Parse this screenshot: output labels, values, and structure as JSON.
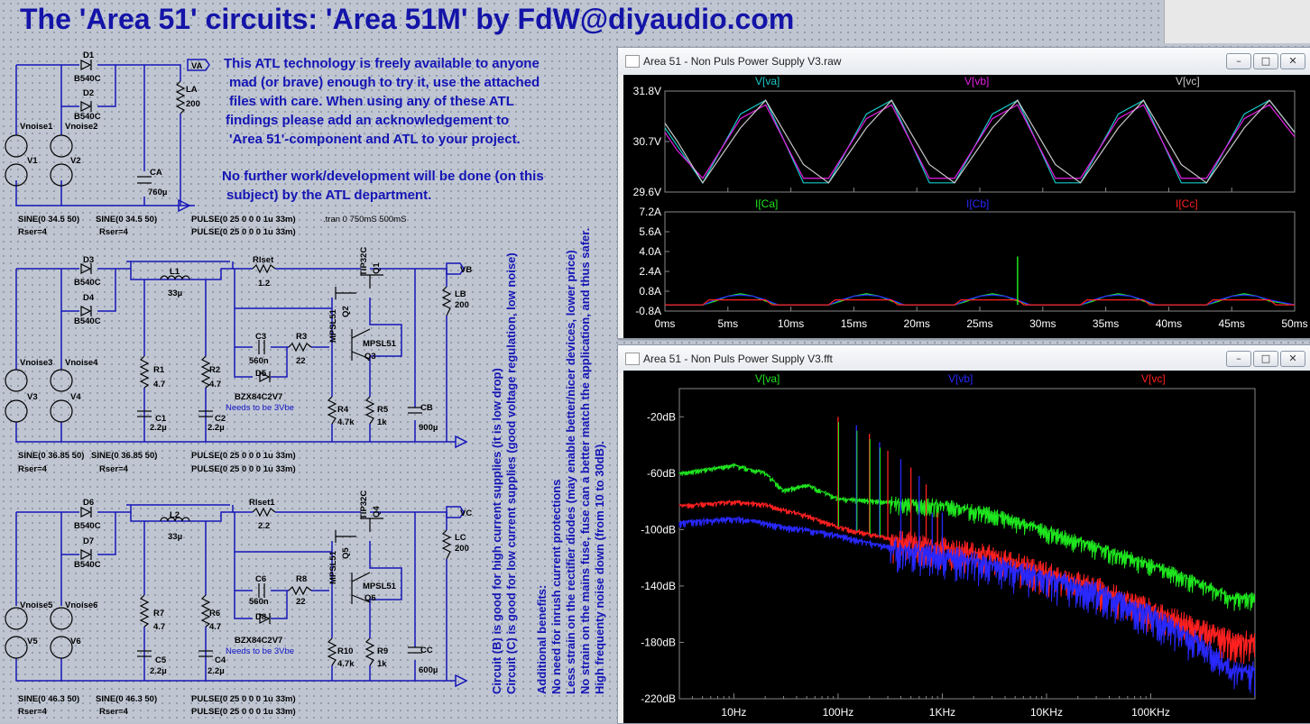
{
  "title": "The 'Area 51' circuits: 'Area 51M' by FdW@diyaudio.com",
  "notes": {
    "license_1": "This ATL technology is freely available to anyone",
    "license_2": "mad (or brave) enough to try it, use the attached",
    "license_3": "files with care. When using any of these ATL",
    "license_4": "findings please add an acknowledgement to",
    "license_5": "'Area 51'-component and ATL to your project.",
    "no_work_1": "No further work/development will be done (on this",
    "no_work_2": "subject) by the ATL department."
  },
  "vertical_notes": {
    "circuit_b": "Circuit (B) is good for high current supplies (it is low drop)",
    "circuit_c": "Circuit (C) is good for low current supplies (good voltage regulation, low noise)",
    "benefits_title": "Additional benefits:",
    "benefit_1": "No need for inrush current protections",
    "benefit_2": "Less strain on the rectifier diodes (may enable better/nicer devices, lower price)",
    "benefit_3": "No strain on the mains fuse, fuse can a better match the application, and thus safer.",
    "benefit_4": "High frequenty noise down (from 10 to 30dB)."
  },
  "schematic": {
    "a": {
      "d1": "D1",
      "d1v": "B540C",
      "d2": "D2",
      "d2v": "B540C",
      "vn1": "Vnoise1",
      "vn2": "Vnoise2",
      "v1": "V1",
      "v2": "V2",
      "la": "LA",
      "la_v": "200",
      "ca": "CA",
      "ca_v": "760µ",
      "net": "VA",
      "src1": "SINE(0 34.5 50)",
      "src2": "SINE(0 34.5 50)",
      "rser1": "Rser=4",
      "rser2": "Rser=4",
      "pulse1": "PULSE(0 25 0 0 0 1u 33m)",
      "pulse2": "PULSE(0 25 0 0 0 1u 33m)",
      "tran": ".tran 0 750mS 500mS"
    },
    "b": {
      "d3": "D3",
      "d3v": "B540C",
      "d4": "D4",
      "d4v": "B540C",
      "vn3": "Vnoise3",
      "vn4": "Vnoise4",
      "v3": "V3",
      "v4": "V4",
      "l1": "L1",
      "l1v": "33µ",
      "rset": "Rlset",
      "rset_v": "1.2",
      "q1": "Q1",
      "q1v": "TIP32C",
      "q2": "Q2",
      "q2v": "MPSL51",
      "q3": "Q3",
      "q3v": "MPSL51",
      "c3": "C3",
      "c3v": "560n",
      "r3": "R3",
      "r3v": "22",
      "d5": "D5",
      "d5v": "BZX84C2V7",
      "need": "Needs to be 3Vbe",
      "r1": "R1",
      "r1v": "4.7",
      "r2": "R2",
      "r2v": "4.7",
      "c1": "C1",
      "c1v": "2.2µ",
      "c2": "C2",
      "c2v": "2.2µ",
      "r4": "R4",
      "r4v": "4.7k",
      "r5": "R5",
      "r5v": "1k",
      "cb": "CB",
      "cbv": "900µ",
      "lb": "LB",
      "lbv": "200",
      "net": "VB",
      "src1": "SINE(0 36.85 50)",
      "src2": "SINE(0 36.85 50)",
      "rser1": "Rser=4",
      "rser2": "Rser=4",
      "pulse1": "PULSE(0 25 0 0 0 1u 33m)",
      "pulse2": "PULSE(0 25 0 0 0 1u 33m)"
    },
    "c": {
      "d6": "D6",
      "d6v": "B540C",
      "d7": "D7",
      "d7v": "B540C",
      "vn5": "Vnoise5",
      "vn6": "Vnoise6",
      "v5": "V5",
      "v6": "V6",
      "l2": "L2",
      "l2v": "33µ",
      "rset": "Rlset1",
      "rset_v": "2.2",
      "q4": "Q4",
      "q4v": "TIP32C",
      "q5": "Q5",
      "q5v": "MPSL51",
      "q6": "Q6",
      "q6v": "MPSL51",
      "c6": "C6",
      "c6v": "560n",
      "r8": "R8",
      "r8v": "22",
      "d8": "D8",
      "d8v": "BZX84C2V7",
      "need": "Needs to be 3Vbe",
      "r7": "R7",
      "r7v": "4.7",
      "r6": "R6",
      "r6v": "4.7",
      "c5": "C5",
      "c5v": "2.2µ",
      "c4": "C4",
      "c4v": "2.2µ",
      "r10": "R10",
      "r10v": "4.7k",
      "r9": "R9",
      "r9v": "1k",
      "cc": "CC",
      "ccv": "600µ",
      "lc": "LC",
      "lcv": "200",
      "net": "VC",
      "src1": "SINE(0 46.3 50)",
      "src2": "SINE(0 46.3 50)",
      "rser1": "Rser=4",
      "rser2": "Rser=4",
      "pulse1": "PULSE(0 25 0 0 0 1u 33m)",
      "pulse2": "PULSE(0 25 0 0 0 1u 33m)"
    }
  },
  "raw_window": {
    "title": "Area 51 - Non Puls Power Supply V3.raw",
    "btn_min": "–",
    "btn_max": "□",
    "btn_close": "✕",
    "traces_top": [
      "V[va]",
      "V[vb]",
      "V[vc]"
    ],
    "traces_bottom": [
      "I[Ca]",
      "I[Cb]",
      "I[Cc]"
    ],
    "colors": {
      "va": "#19c8c8",
      "vb": "#e61ee6",
      "vc": "#c8c8c8",
      "ia": "#1ee61e",
      "ib": "#2828ff",
      "ic": "#ff2020"
    }
  },
  "fft_window": {
    "title": "Area 51 - Non Puls Power Supply V3.fft",
    "btn_min": "–",
    "btn_max": "□",
    "btn_close": "✕",
    "traces": [
      "V[va]",
      "V[vb]",
      "V[vc]"
    ],
    "colors": {
      "va": "#1ee61e",
      "vb": "#2828ff",
      "vc": "#ff2020"
    }
  },
  "chart_data": [
    {
      "type": "line",
      "title": "",
      "xlabel": "",
      "ylabel": "",
      "x_ticks": [
        "0ms",
        "5ms",
        "10ms",
        "15ms",
        "20ms",
        "25ms",
        "30ms",
        "35ms",
        "40ms",
        "45ms",
        "50ms"
      ],
      "y_ticks": [
        "31.8V",
        "30.7V",
        "29.6V"
      ],
      "xlim": [
        0,
        50
      ],
      "ylim": [
        29.6,
        31.8
      ],
      "x_unit": "ms",
      "series": [
        {
          "name": "V[va]",
          "x": [
            0,
            1,
            3,
            6,
            8,
            11,
            13,
            16,
            18,
            21,
            23,
            26,
            28,
            31,
            33,
            36,
            38,
            41,
            43,
            46,
            48,
            50
          ],
          "y": [
            31.0,
            30.6,
            29.8,
            31.3,
            31.6,
            29.8,
            29.8,
            31.3,
            31.6,
            29.8,
            29.8,
            31.3,
            31.6,
            29.8,
            29.8,
            31.3,
            31.6,
            29.8,
            29.8,
            31.3,
            31.6,
            30.9
          ]
        },
        {
          "name": "V[vb]",
          "x": [
            0,
            1,
            3,
            6,
            8,
            11,
            13,
            16,
            18,
            21,
            23,
            26,
            28,
            31,
            33,
            36,
            38,
            41,
            43,
            46,
            48,
            50
          ],
          "y": [
            30.9,
            30.5,
            29.9,
            31.2,
            31.5,
            29.9,
            29.9,
            31.2,
            31.5,
            29.9,
            29.9,
            31.2,
            31.5,
            29.9,
            29.9,
            31.2,
            31.5,
            29.9,
            29.9,
            31.2,
            31.5,
            30.8
          ]
        },
        {
          "name": "V[vc]",
          "x": [
            0,
            1,
            3,
            6,
            8,
            11,
            13,
            16,
            18,
            21,
            23,
            26,
            28,
            31,
            33,
            36,
            38,
            41,
            43,
            46,
            48,
            50
          ],
          "y": [
            31.1,
            30.7,
            29.8,
            31.0,
            31.6,
            30.2,
            29.8,
            31.0,
            31.6,
            30.2,
            29.8,
            31.0,
            31.6,
            30.2,
            29.8,
            31.0,
            31.6,
            30.2,
            29.8,
            31.0,
            31.6,
            30.9
          ]
        }
      ]
    },
    {
      "type": "line",
      "title": "",
      "x_ticks": [
        "0ms",
        "5ms",
        "10ms",
        "15ms",
        "20ms",
        "25ms",
        "30ms",
        "35ms",
        "40ms",
        "45ms",
        "50ms"
      ],
      "y_ticks": [
        "7.2A",
        "5.6A",
        "4.0A",
        "2.4A",
        "0.8A",
        "-0.8A"
      ],
      "xlim": [
        0,
        50
      ],
      "ylim": [
        -0.8,
        7.2
      ],
      "series": [
        {
          "name": "I[Ca]",
          "x": [
            0,
            3,
            4,
            5,
            6,
            7,
            8,
            9,
            13,
            14,
            15,
            16,
            17,
            18,
            19,
            23,
            24,
            25,
            26,
            27,
            28,
            29,
            33,
            34,
            35,
            36,
            37,
            38,
            39,
            43,
            44,
            45,
            46,
            47,
            48,
            50
          ],
          "y": [
            -0.3,
            -0.3,
            0.0,
            0.4,
            0.6,
            0.4,
            0.0,
            -0.3,
            -0.3,
            0.0,
            0.4,
            0.6,
            0.4,
            0.0,
            -0.3,
            -0.3,
            0.0,
            0.4,
            0.6,
            0.4,
            0.0,
            -0.3,
            -0.3,
            0.0,
            0.4,
            0.6,
            0.4,
            0.0,
            -0.3,
            -0.3,
            0.0,
            0.4,
            0.6,
            0.4,
            0.0,
            -0.3
          ]
        },
        {
          "name": "I[Cb]",
          "x": [
            0,
            3,
            4,
            5,
            6,
            7,
            8,
            9,
            13,
            14,
            15,
            16,
            17,
            18,
            19,
            23,
            24,
            25,
            26,
            27,
            28,
            29,
            33,
            34,
            35,
            36,
            37,
            38,
            39,
            43,
            44,
            45,
            46,
            47,
            48,
            50
          ],
          "y": [
            -0.3,
            -0.3,
            0.1,
            0.4,
            0.5,
            0.4,
            0.1,
            -0.3,
            -0.3,
            0.1,
            0.4,
            0.5,
            0.4,
            0.1,
            -0.3,
            -0.3,
            0.1,
            0.4,
            0.5,
            0.4,
            0.1,
            -0.3,
            -0.3,
            0.1,
            0.4,
            0.5,
            0.4,
            0.1,
            -0.3,
            -0.3,
            0.1,
            0.4,
            0.5,
            0.4,
            0.1,
            -0.3
          ]
        },
        {
          "name": "I[Cc]",
          "x": [
            0,
            3,
            3.5,
            8,
            8.5,
            13,
            13.5,
            18,
            18.5,
            23,
            23.5,
            28,
            28.5,
            33,
            33.5,
            38,
            38.5,
            43,
            43.5,
            48,
            48.5,
            50
          ],
          "y": [
            -0.3,
            -0.3,
            0.1,
            0.1,
            -0.3,
            -0.3,
            0.1,
            0.1,
            -0.3,
            -0.3,
            0.1,
            0.1,
            -0.3,
            -0.3,
            0.1,
            0.1,
            -0.3,
            -0.3,
            0.1,
            0.1,
            -0.3,
            -0.3
          ]
        }
      ],
      "annotations": [
        {
          "series": "I[Ca]",
          "x": 28,
          "y": 3.6,
          "note": "spike"
        }
      ]
    },
    {
      "type": "line",
      "title": "",
      "x_scale": "log",
      "x_ticks": [
        "10Hz",
        "100Hz",
        "1KHz",
        "10KHz",
        "100KHz"
      ],
      "y_ticks": [
        "-20dB",
        "-60dB",
        "-100dB",
        "-140dB",
        "-180dB",
        "-220dB"
      ],
      "xlim": [
        3,
        1000000
      ],
      "ylim": [
        -220,
        0
      ],
      "series": [
        {
          "name": "V[va]",
          "x": [
            3,
            10,
            20,
            30,
            50,
            100,
            300,
            1000,
            3000,
            10000,
            30000,
            100000,
            300000,
            600000
          ],
          "y": [
            -60,
            -54,
            -60,
            -72,
            -68,
            -78,
            -80,
            -82,
            -88,
            -100,
            -112,
            -124,
            -138,
            -148
          ]
        },
        {
          "name": "V[vb]",
          "x": [
            3,
            10,
            20,
            30,
            50,
            100,
            300,
            1000,
            3000,
            10000,
            30000,
            100000,
            300000,
            600000
          ],
          "y": [
            -95,
            -92,
            -95,
            -98,
            -100,
            -104,
            -112,
            -118,
            -124,
            -134,
            -144,
            -160,
            -180,
            -200
          ]
        },
        {
          "name": "V[vc]",
          "x": [
            3,
            10,
            20,
            30,
            50,
            100,
            300,
            1000,
            3000,
            10000,
            30000,
            100000,
            300000,
            600000
          ],
          "y": [
            -83,
            -80,
            -82,
            -86,
            -90,
            -98,
            -106,
            -112,
            -118,
            -130,
            -140,
            -156,
            -170,
            -178
          ]
        }
      ]
    }
  ]
}
